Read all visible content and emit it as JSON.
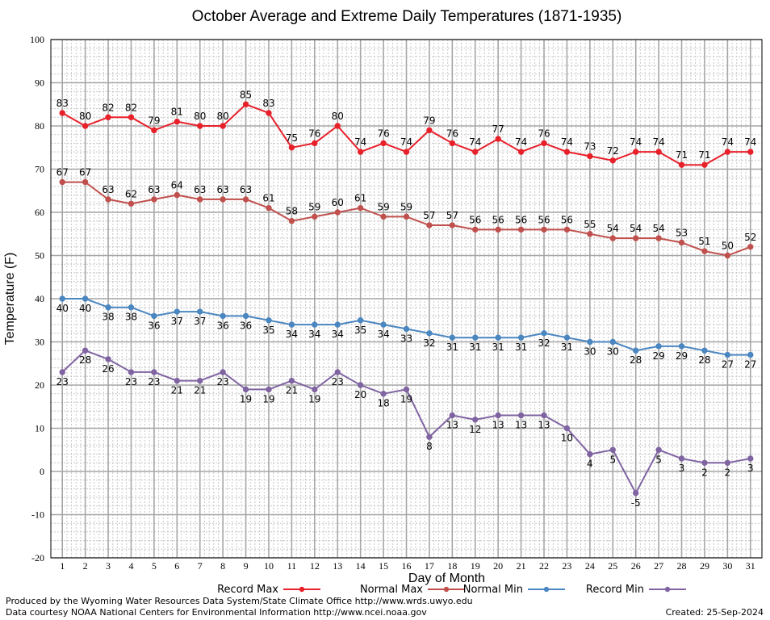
{
  "footer": {
    "produced_by": "Produced by the Wyoming Water Resources Data System/State Climate Office http://www.wrds.uwyo.edu",
    "courtesy": "Data courtesy NOAA National Centers for Environmental Information http://www.ncei.noaa.gov",
    "created": "Created: 25-Sep-2024"
  },
  "chart_data": {
    "type": "line",
    "title": "October Average and Extreme Daily Temperatures (1871-1935)",
    "xlabel": "Day of Month",
    "ylabel": "Temperature (F)",
    "xlim": [
      1,
      31
    ],
    "ylim": [
      -20,
      100
    ],
    "yticks": [
      -20,
      -10,
      0,
      10,
      20,
      30,
      40,
      50,
      60,
      70,
      80,
      90,
      100
    ],
    "grid": true,
    "legend_position": "bottom",
    "x": [
      1,
      2,
      3,
      4,
      5,
      6,
      7,
      8,
      9,
      10,
      11,
      12,
      13,
      14,
      15,
      16,
      17,
      18,
      19,
      20,
      21,
      22,
      23,
      24,
      25,
      26,
      27,
      28,
      29,
      30,
      31
    ],
    "series": [
      {
        "name": "Record Max",
        "color": "#e8202a",
        "label_pos": "above",
        "values": [
          83,
          80,
          82,
          82,
          79,
          81,
          80,
          80,
          85,
          83,
          75,
          76,
          80,
          74,
          76,
          74,
          79,
          76,
          74,
          77,
          74,
          76,
          74,
          73,
          72,
          74,
          74,
          71,
          71,
          74,
          74
        ]
      },
      {
        "name": "Normal Max",
        "color": "#c0504d",
        "label_pos": "above",
        "values": [
          67,
          67,
          63,
          62,
          63,
          64,
          63,
          63,
          63,
          61,
          58,
          59,
          60,
          61,
          59,
          59,
          57,
          57,
          56,
          56,
          56,
          56,
          56,
          55,
          54,
          54,
          54,
          53,
          51,
          50,
          52
        ]
      },
      {
        "name": "Normal Min",
        "color": "#4a86c0",
        "label_pos": "below",
        "values": [
          40,
          40,
          38,
          38,
          36,
          37,
          37,
          36,
          36,
          35,
          34,
          34,
          34,
          35,
          34,
          33,
          32,
          31,
          31,
          31,
          31,
          32,
          31,
          30,
          30,
          28,
          29,
          29,
          28,
          27,
          27
        ]
      },
      {
        "name": "Record Min",
        "color": "#8064a2",
        "label_pos": "below",
        "values": [
          23,
          28,
          26,
          23,
          23,
          21,
          21,
          23,
          19,
          19,
          21,
          19,
          23,
          20,
          18,
          19,
          8,
          13,
          12,
          13,
          13,
          13,
          10,
          4,
          5,
          -5,
          5,
          3,
          2,
          2,
          3
        ]
      }
    ]
  }
}
